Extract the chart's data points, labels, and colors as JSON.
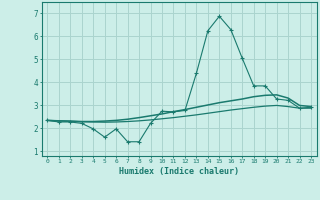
{
  "xlabel": "Humidex (Indice chaleur)",
  "background_color": "#cceee8",
  "grid_color": "#aad4ce",
  "line_color": "#1a7a6e",
  "xlim": [
    -0.5,
    23.5
  ],
  "ylim": [
    0.8,
    7.5
  ],
  "yticks": [
    1,
    2,
    3,
    4,
    5,
    6,
    7
  ],
  "xticks": [
    0,
    1,
    2,
    3,
    4,
    5,
    6,
    7,
    8,
    9,
    10,
    11,
    12,
    13,
    14,
    15,
    16,
    17,
    18,
    19,
    20,
    21,
    22,
    23
  ],
  "series1_x": [
    0,
    1,
    2,
    3,
    4,
    5,
    6,
    7,
    8,
    9,
    10,
    11,
    12,
    13,
    14,
    15,
    16,
    17,
    18,
    19,
    20,
    21,
    22,
    23
  ],
  "series1_y": [
    2.35,
    2.28,
    2.28,
    2.22,
    1.98,
    1.62,
    1.98,
    1.42,
    1.42,
    2.22,
    2.75,
    2.72,
    2.78,
    4.4,
    6.25,
    6.88,
    6.3,
    5.05,
    3.85,
    3.85,
    3.28,
    3.22,
    2.88,
    2.92
  ],
  "series2_x": [
    0,
    1,
    2,
    3,
    4,
    5,
    6,
    7,
    8,
    9,
    10,
    11,
    12,
    13,
    14,
    15,
    16,
    17,
    18,
    19,
    20,
    21,
    22,
    23
  ],
  "series2_y": [
    2.35,
    2.33,
    2.32,
    2.3,
    2.3,
    2.32,
    2.35,
    2.4,
    2.47,
    2.55,
    2.63,
    2.73,
    2.82,
    2.92,
    3.02,
    3.12,
    3.2,
    3.28,
    3.38,
    3.44,
    3.46,
    3.32,
    3.0,
    2.95
  ],
  "series3_x": [
    0,
    1,
    2,
    3,
    4,
    5,
    6,
    7,
    8,
    9,
    10,
    11,
    12,
    13,
    14,
    15,
    16,
    17,
    18,
    19,
    20,
    21,
    22,
    23
  ],
  "series3_y": [
    2.35,
    2.33,
    2.31,
    2.29,
    2.28,
    2.27,
    2.28,
    2.3,
    2.33,
    2.37,
    2.42,
    2.47,
    2.53,
    2.59,
    2.66,
    2.73,
    2.8,
    2.86,
    2.92,
    2.97,
    3.0,
    2.95,
    2.88,
    2.88
  ]
}
